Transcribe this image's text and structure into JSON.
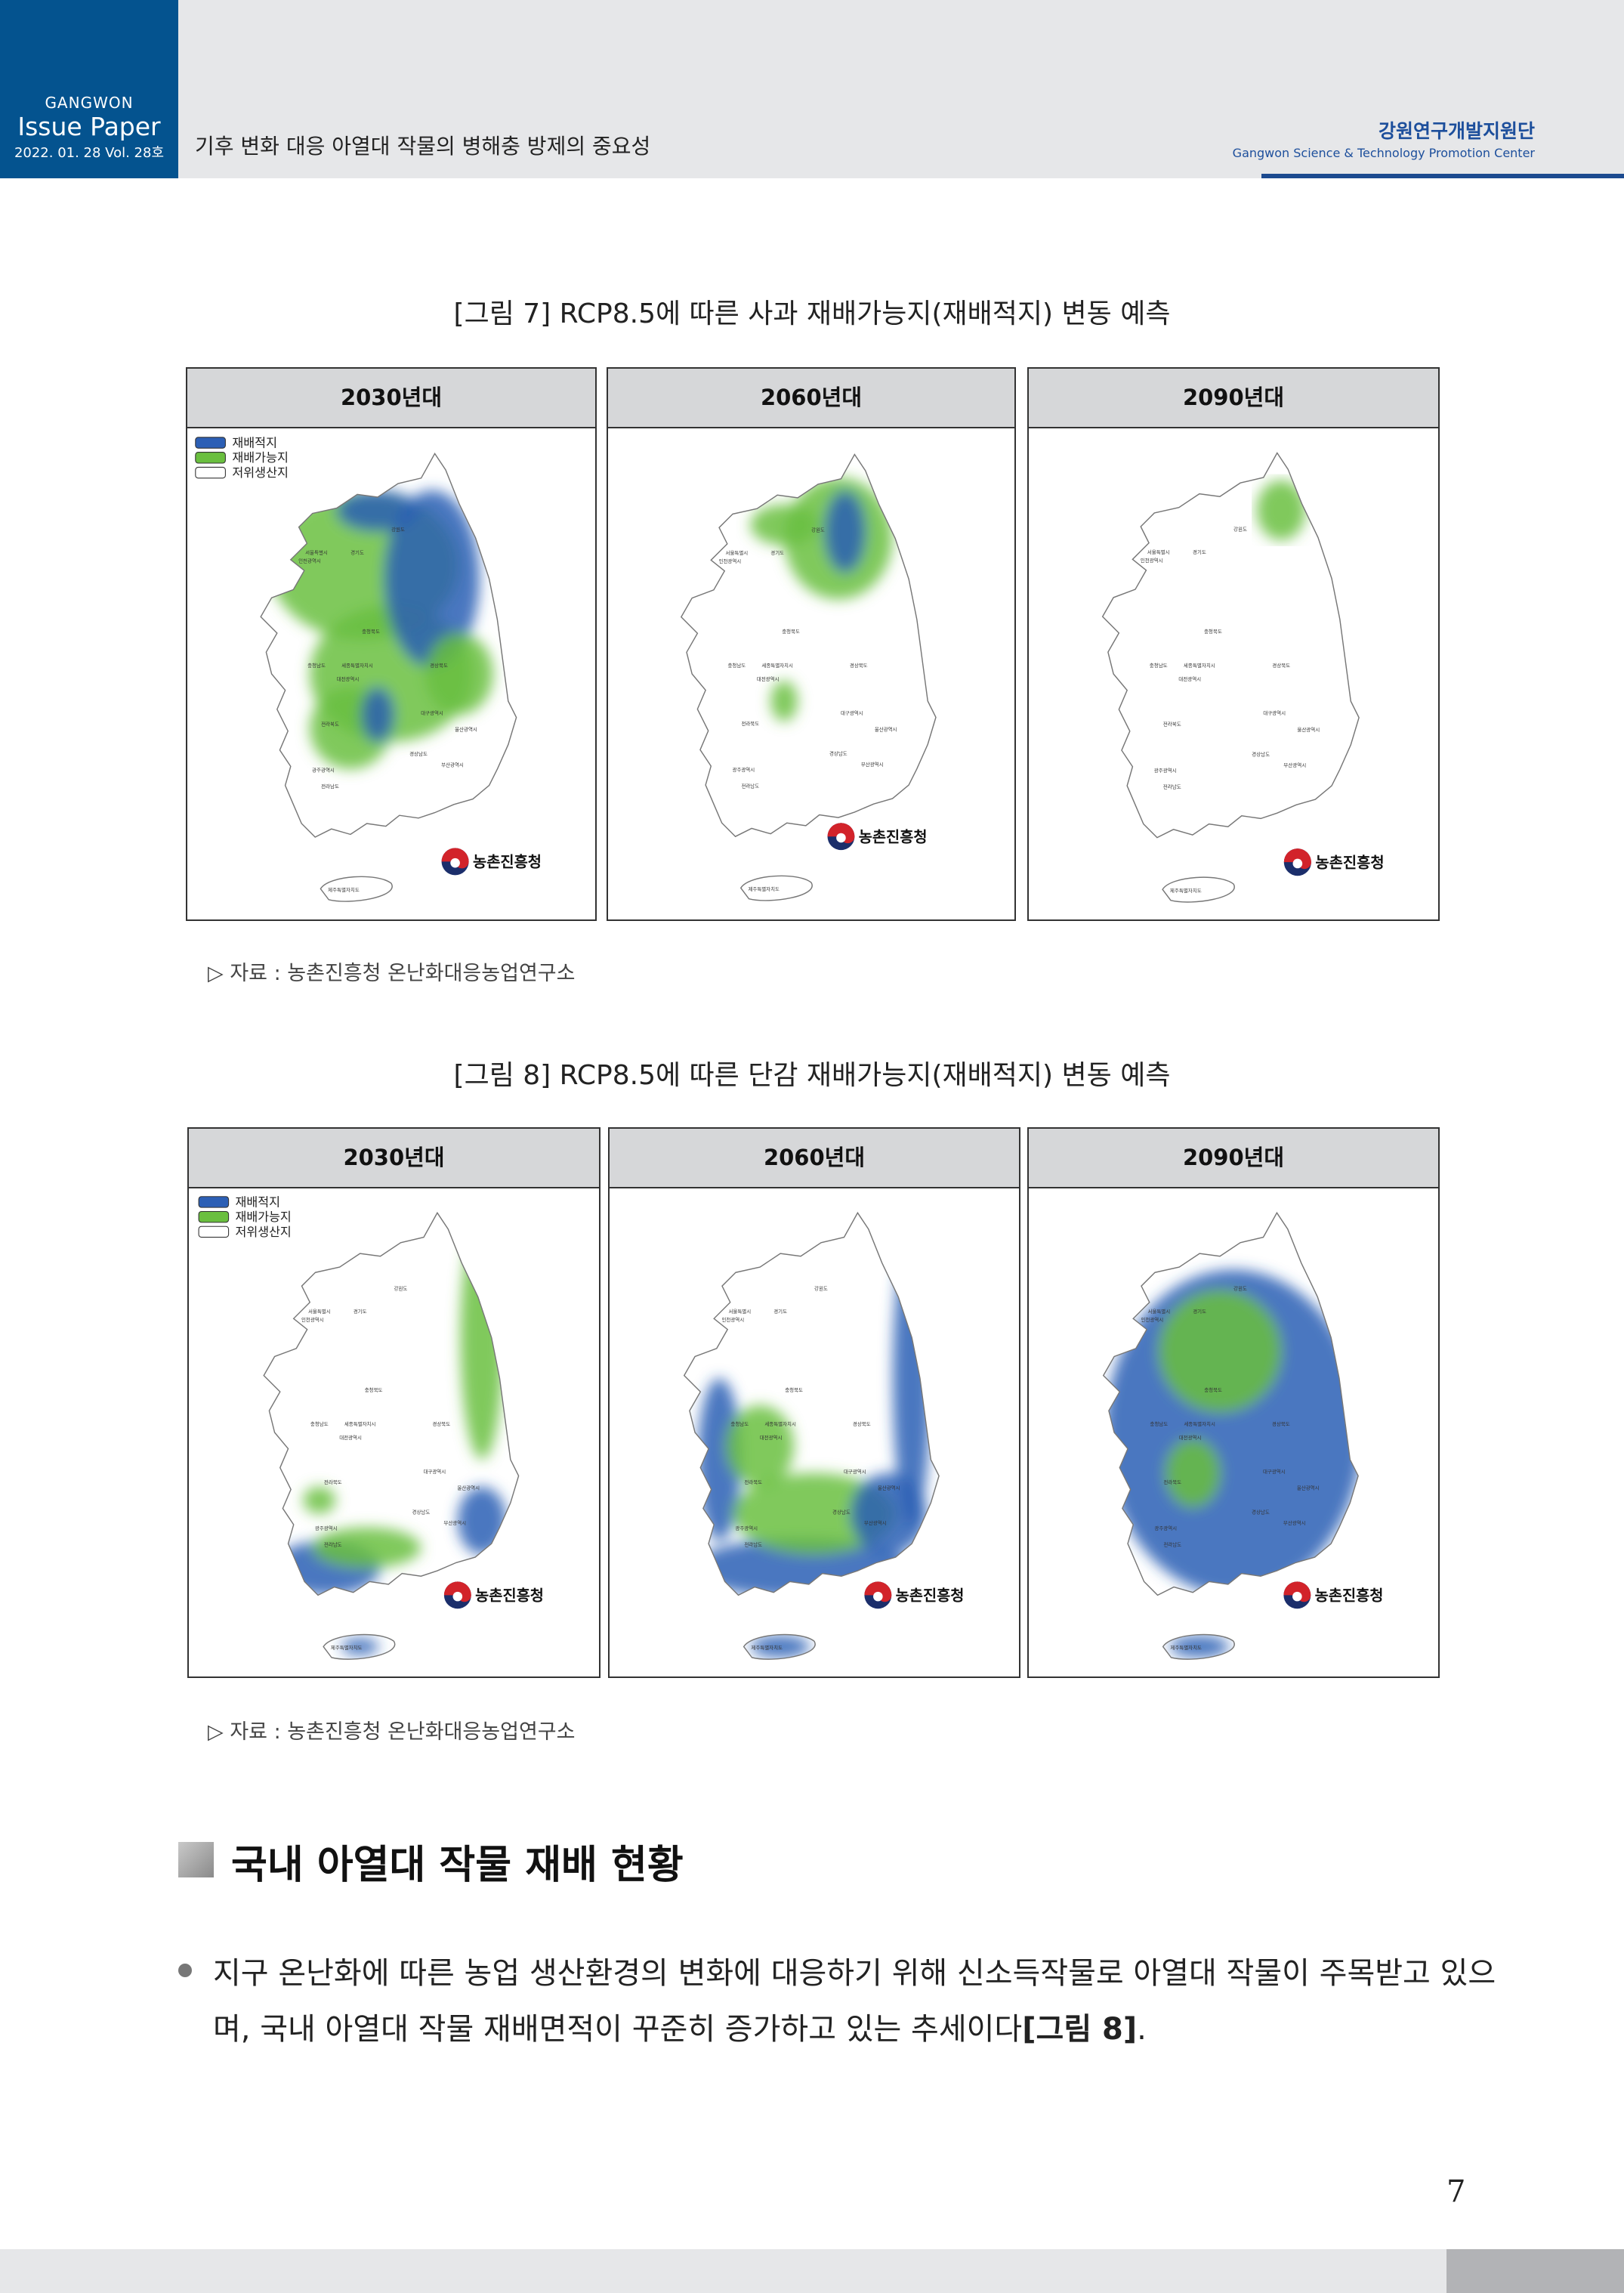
{
  "header": {
    "brand_top": "GANGWON",
    "brand_name": "Issue Paper",
    "brand_date": "2022. 01. 28  Vol. 28호",
    "title": "기후 변화 대응 아열대 작물의 병해충 방제의 중요성",
    "org_name": "강원연구개발지원단",
    "org_name_en": "Gangwon Science & Technology Promotion Center",
    "brand_color": "#04538f"
  },
  "legend": [
    "재배적지",
    "재배가능지",
    "저위생산지"
  ],
  "legend_colors": [
    "#2c5fb5",
    "#6abf3f",
    "#ffffff"
  ],
  "region_labels": [
    "서울특별시",
    "경기도",
    "인천광역시",
    "강원도",
    "충청북도",
    "충청남도",
    "세종특별자치시",
    "대전광역시",
    "경상북도",
    "대구광역시",
    "전라북도",
    "울산광역시",
    "경상남도",
    "부산광역시",
    "광주광역시",
    "전라남도",
    "제주특별자치도"
  ],
  "logo_text": "농촌진흥청",
  "figures": [
    {
      "caption": "[그림 7] RCP8.5에 따른 사과 재배가능지(재배적지) 변동 예측",
      "panels": [
        {
          "period": "2030년대",
          "coverage": "high-north"
        },
        {
          "period": "2060년대",
          "coverage": "low-north"
        },
        {
          "period": "2090년대",
          "coverage": "minimal"
        }
      ],
      "source": "▷ 자료 : 농촌진흥청 온난화대응농업연구소"
    },
    {
      "caption": "[그림 8] RCP8.5에 따른 단감 재배가능지(재배적지) 변동 예측",
      "panels": [
        {
          "period": "2030년대",
          "coverage": "south-coast"
        },
        {
          "period": "2060년대",
          "coverage": "coastal-wide"
        },
        {
          "period": "2090년대",
          "coverage": "most"
        }
      ],
      "source": "▷ 자료 : 농촌진흥청 온난화대응농업연구소"
    }
  ],
  "section": {
    "title": "국내 아열대 작물 재배 현황",
    "bullet_text": "지구 온난화에 따른 농업 생산환경의 변화에 대응하기 위해 신소득작물로 아열대 작물이 주목받고 있으며, 국내 아열대 작물 재배면적이 꾸준히 증가하고 있는 추세이다",
    "bullet_ref": "[그림 8]",
    "bullet_end": "."
  },
  "page_number": "7"
}
